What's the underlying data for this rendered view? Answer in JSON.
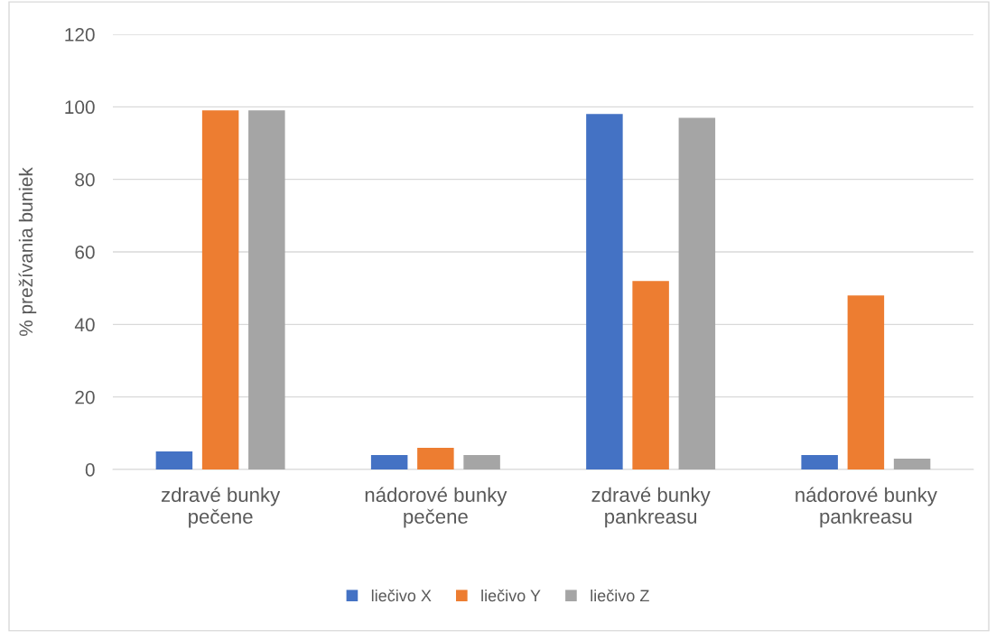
{
  "chart_data": {
    "type": "bar",
    "ylabel": "% prežívania buniek",
    "categories": [
      "zdravé bunky\npečene",
      "nádorové bunky\npečene",
      "zdravé bunky\npankreasu",
      "nádorové bunky\npankreasu"
    ],
    "series": [
      {
        "name": "liečivo X",
        "color": "#4472c4",
        "values": [
          5,
          4,
          98,
          4
        ]
      },
      {
        "name": "liečivo Y",
        "color": "#ed7d31",
        "values": [
          99,
          6,
          52,
          48
        ]
      },
      {
        "name": "liečivo Z",
        "color": "#a5a5a5",
        "values": [
          99,
          4,
          97,
          3
        ]
      }
    ],
    "ylim": [
      0,
      120
    ],
    "yticks": [
      0,
      20,
      40,
      60,
      80,
      100,
      120
    ],
    "grid": "y",
    "legend": "bottom"
  }
}
